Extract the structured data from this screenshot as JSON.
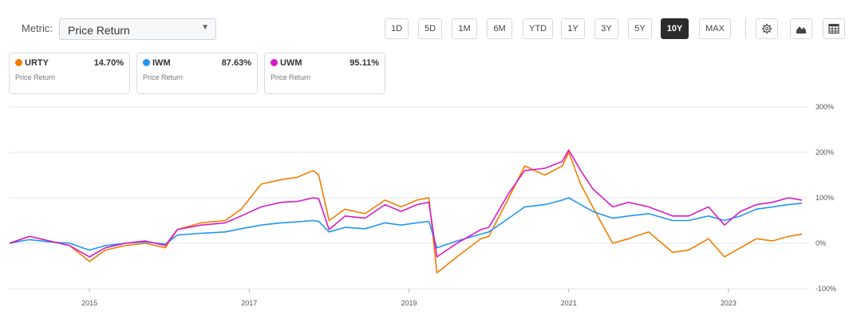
{
  "metric": {
    "label": "Metric:",
    "selected": "Price Return"
  },
  "ranges": [
    "1D",
    "5D",
    "1M",
    "6M",
    "YTD",
    "1Y",
    "3Y",
    "5Y",
    "10Y",
    "MAX"
  ],
  "active_range": "10Y",
  "tools": {
    "settings_icon": "gear-icon",
    "chart_type_icon": "mountain-chart-icon",
    "table_icon": "table-icon"
  },
  "legend": [
    {
      "ticker": "URTY",
      "value": "14.70%",
      "sub": "Price Return",
      "color": "#f57c00"
    },
    {
      "ticker": "IWM",
      "value": "87.63%",
      "sub": "Price Return",
      "color": "#2196f3"
    },
    {
      "ticker": "UWM",
      "value": "95.11%",
      "sub": "Price Return",
      "color": "#d81bc4"
    }
  ],
  "chart_data": {
    "type": "line",
    "y_ticks": [
      "300%",
      "200%",
      "100%",
      "0%",
      "-100%"
    ],
    "ylim": [
      -100,
      300
    ],
    "x_ticks": [
      "2015",
      "2017",
      "2019",
      "2021",
      "2023"
    ],
    "xlim": [
      2014.0,
      2024.0
    ],
    "grid": true,
    "series": [
      {
        "name": "URTY",
        "color": "#f57c00",
        "x": [
          2014.0,
          2014.25,
          2014.5,
          2014.75,
          2015.0,
          2015.2,
          2015.45,
          2015.7,
          2015.95,
          2016.1,
          2016.4,
          2016.7,
          2016.9,
          2017.15,
          2017.4,
          2017.6,
          2017.8,
          2017.87,
          2018.0,
          2018.2,
          2018.45,
          2018.7,
          2018.9,
          2019.1,
          2019.25,
          2019.35,
          2019.6,
          2019.9,
          2020.0,
          2020.25,
          2020.45,
          2020.7,
          2020.92,
          2021.0,
          2021.15,
          2021.3,
          2021.55,
          2021.75,
          2022.0,
          2022.3,
          2022.5,
          2022.75,
          2022.95,
          2023.15,
          2023.35,
          2023.55,
          2023.75,
          2023.92
        ],
        "y": [
          0,
          15,
          5,
          -5,
          -40,
          -15,
          -5,
          0,
          -10,
          30,
          45,
          50,
          75,
          130,
          140,
          145,
          160,
          150,
          50,
          75,
          65,
          95,
          80,
          95,
          100,
          -65,
          -30,
          10,
          15,
          100,
          170,
          150,
          170,
          200,
          130,
          80,
          0,
          10,
          25,
          -20,
          -15,
          10,
          -30,
          -10,
          10,
          5,
          15,
          20
        ]
      },
      {
        "name": "IWM",
        "color": "#2196f3",
        "x": [
          2014.0,
          2014.25,
          2014.5,
          2014.75,
          2015.0,
          2015.2,
          2015.45,
          2015.7,
          2015.95,
          2016.1,
          2016.4,
          2016.7,
          2016.9,
          2017.15,
          2017.4,
          2017.6,
          2017.8,
          2017.87,
          2018.0,
          2018.2,
          2018.45,
          2018.7,
          2018.9,
          2019.1,
          2019.25,
          2019.35,
          2019.6,
          2019.9,
          2020.0,
          2020.25,
          2020.45,
          2020.7,
          2020.92,
          2021.0,
          2021.15,
          2021.3,
          2021.55,
          2021.75,
          2022.0,
          2022.3,
          2022.5,
          2022.75,
          2022.95,
          2023.15,
          2023.35,
          2023.55,
          2023.75,
          2023.92
        ],
        "y": [
          0,
          8,
          3,
          0,
          -15,
          -5,
          0,
          3,
          -2,
          18,
          22,
          25,
          32,
          40,
          45,
          47,
          50,
          48,
          25,
          35,
          32,
          45,
          40,
          45,
          48,
          -10,
          5,
          20,
          25,
          55,
          80,
          85,
          95,
          100,
          85,
          70,
          55,
          60,
          65,
          50,
          50,
          60,
          50,
          60,
          75,
          80,
          85,
          88
        ]
      },
      {
        "name": "UWM",
        "color": "#d81bc4",
        "x": [
          2014.0,
          2014.25,
          2014.5,
          2014.75,
          2015.0,
          2015.2,
          2015.45,
          2015.7,
          2015.95,
          2016.1,
          2016.4,
          2016.7,
          2016.9,
          2017.15,
          2017.4,
          2017.6,
          2017.8,
          2017.87,
          2018.0,
          2018.2,
          2018.45,
          2018.7,
          2018.9,
          2019.1,
          2019.25,
          2019.35,
          2019.6,
          2019.9,
          2020.0,
          2020.25,
          2020.45,
          2020.7,
          2020.92,
          2021.0,
          2021.15,
          2021.3,
          2021.55,
          2021.75,
          2022.0,
          2022.3,
          2022.5,
          2022.75,
          2022.95,
          2023.15,
          2023.35,
          2023.55,
          2023.75,
          2023.92
        ],
        "y": [
          0,
          15,
          5,
          -5,
          -30,
          -10,
          0,
          5,
          -5,
          30,
          40,
          45,
          60,
          80,
          90,
          92,
          100,
          98,
          30,
          60,
          55,
          85,
          70,
          85,
          90,
          -30,
          0,
          30,
          35,
          110,
          160,
          165,
          180,
          205,
          160,
          120,
          80,
          90,
          80,
          60,
          60,
          80,
          40,
          70,
          85,
          90,
          100,
          95
        ]
      }
    ]
  }
}
